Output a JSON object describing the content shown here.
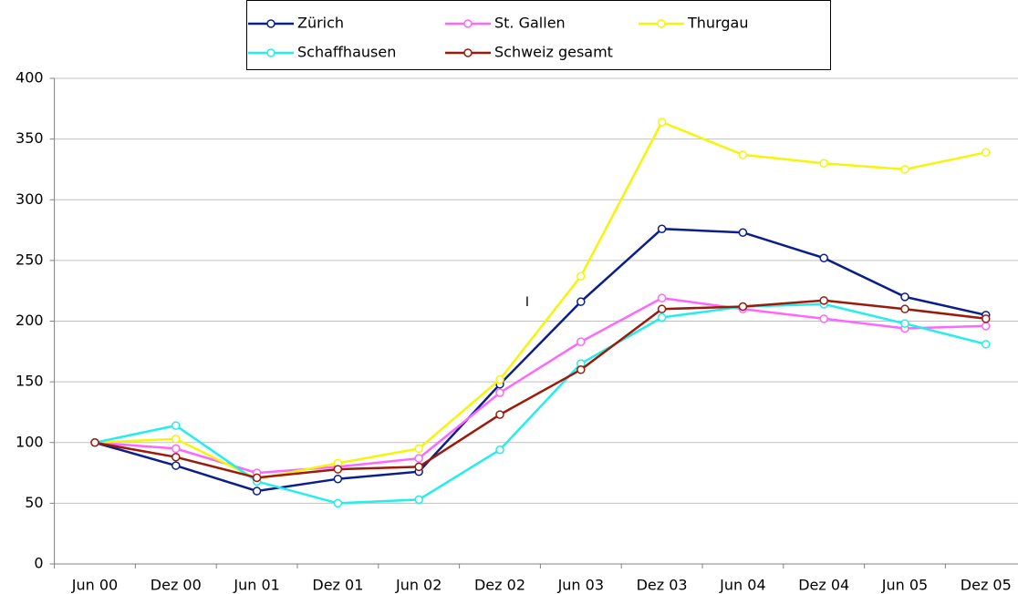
{
  "chart_data": {
    "type": "line",
    "categories": [
      "Jun 00",
      "Dez 00",
      "Jun 01",
      "Dez 01",
      "Jun 02",
      "Dez 02",
      "Jun 03",
      "Dez 03",
      "Jun 04",
      "Dez 04",
      "Jun 05",
      "Dez 05"
    ],
    "series": [
      {
        "name": "Zürich",
        "color": "#0a1e8c",
        "values": [
          100,
          81,
          60,
          70,
          76,
          148,
          216,
          276,
          273,
          252,
          220,
          205
        ]
      },
      {
        "name": "St. Gallen",
        "color": "#ff66ff",
        "values": [
          100,
          95,
          75,
          80,
          87,
          141,
          183,
          219,
          210,
          202,
          194,
          196
        ]
      },
      {
        "name": "Thurgau",
        "color": "#f5f50a",
        "values": [
          100,
          103,
          70,
          83,
          95,
          152,
          237,
          364,
          337,
          330,
          325,
          339
        ]
      },
      {
        "name": "Schaffhausen",
        "color": "#22eeee",
        "values": [
          100,
          114,
          68,
          50,
          53,
          94,
          165,
          203,
          212,
          214,
          198,
          181
        ]
      },
      {
        "name": "Schweiz gesamt",
        "color": "#9b1a0a",
        "values": [
          100,
          88,
          71,
          78,
          80,
          123,
          160,
          210,
          212,
          217,
          210,
          202
        ]
      }
    ],
    "ylim": [
      0,
      400
    ],
    "yticks": [
      0,
      50,
      100,
      150,
      200,
      250,
      300,
      350,
      400
    ],
    "grid": true,
    "legend": "top",
    "annotation": "I"
  }
}
